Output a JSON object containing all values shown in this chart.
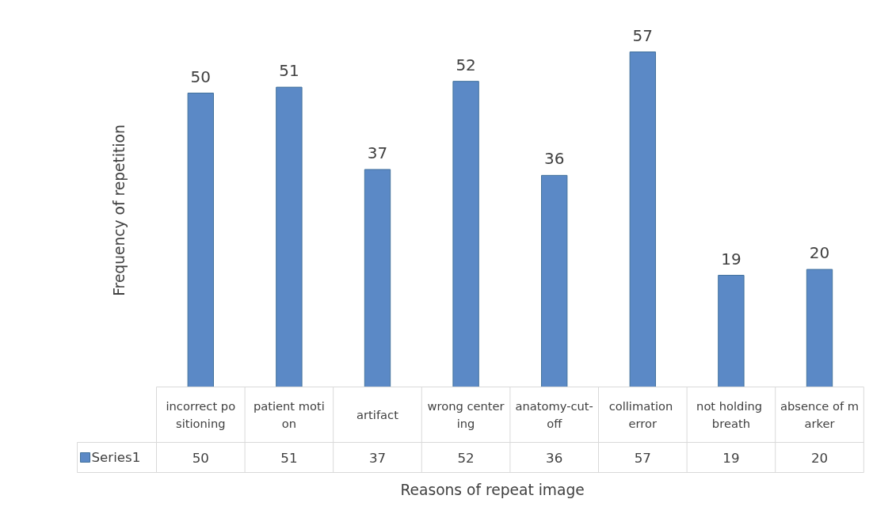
{
  "chart_data": {
    "type": "bar",
    "xlabel": "Reasons of repeat image",
    "ylabel": "Frequency of repetition",
    "categories": [
      "incorrect positioning",
      "patient motion",
      "artifact",
      "wrong centering",
      "anatomy-cut-off",
      "collimation error",
      "not holding breath",
      "absence of marker"
    ],
    "series": [
      {
        "name": "Series1",
        "color": "#5b89c6",
        "values": [
          50,
          51,
          37,
          52,
          36,
          57,
          19,
          20
        ],
        "value_labels": [
          "50",
          "51",
          "37",
          "52",
          "36",
          "57",
          "19",
          "20"
        ]
      }
    ],
    "data_labels": true,
    "grid": false
  }
}
